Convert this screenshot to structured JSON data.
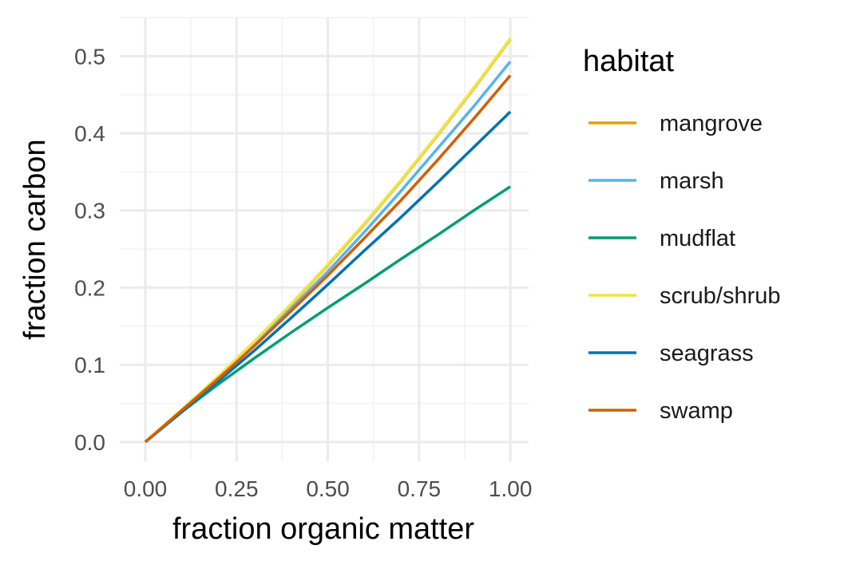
{
  "chart_data": {
    "type": "line",
    "xlabel": "fraction organic matter",
    "ylabel": "fraction carbon",
    "xlim": [
      -0.07,
      1.05
    ],
    "ylim": [
      -0.025,
      0.55
    ],
    "x_ticks": [
      0.0,
      0.25,
      0.5,
      0.75,
      1.0
    ],
    "x_tick_labels": [
      "0.00",
      "0.25",
      "0.50",
      "0.75",
      "1.00"
    ],
    "y_ticks": [
      0.0,
      0.1,
      0.2,
      0.3,
      0.4,
      0.5
    ],
    "y_tick_labels": [
      "0.0",
      "0.1",
      "0.2",
      "0.3",
      "0.4",
      "0.5"
    ],
    "grid": true,
    "legend": {
      "title": "habitat",
      "position": "right"
    },
    "x": [
      0.0,
      0.1,
      0.2,
      0.3,
      0.4,
      0.5,
      0.6,
      0.7,
      0.8,
      0.9,
      1.0
    ],
    "series": [
      {
        "name": "mangrove",
        "color": "#E69F00",
        "values": [
          0.0,
          0.041,
          0.084,
          0.13,
          0.178,
          0.229,
          0.282,
          0.338,
          0.397,
          0.458,
          0.522
        ]
      },
      {
        "name": "marsh",
        "color": "#56B4E9",
        "values": [
          0.0,
          0.041,
          0.083,
          0.127,
          0.173,
          0.221,
          0.272,
          0.325,
          0.38,
          0.435,
          0.493
        ]
      },
      {
        "name": "mudflat",
        "color": "#009E73",
        "values": [
          0.0,
          0.039,
          0.075,
          0.109,
          0.142,
          0.174,
          0.205,
          0.237,
          0.268,
          0.3,
          0.331
        ]
      },
      {
        "name": "scrub/shrub",
        "color": "#F0E442",
        "values": [
          0.0,
          0.042,
          0.085,
          0.131,
          0.179,
          0.23,
          0.283,
          0.339,
          0.398,
          0.459,
          0.523
        ]
      },
      {
        "name": "seagrass",
        "color": "#0072B2",
        "values": [
          0.0,
          0.039,
          0.079,
          0.119,
          0.161,
          0.204,
          0.248,
          0.291,
          0.336,
          0.382,
          0.428
        ]
      },
      {
        "name": "swamp",
        "color": "#D55E00",
        "values": [
          0.0,
          0.041,
          0.082,
          0.125,
          0.17,
          0.216,
          0.264,
          0.313,
          0.365,
          0.419,
          0.475
        ]
      }
    ]
  }
}
